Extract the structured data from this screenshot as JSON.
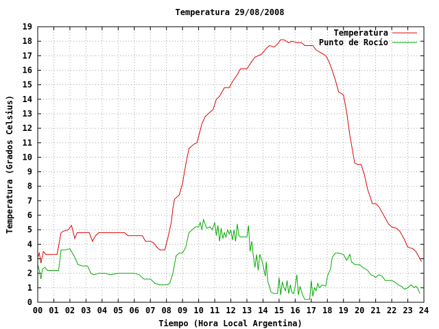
{
  "chart_data": {
    "type": "line",
    "title": "Temperatura 29/08/2008",
    "xlabel": "Tiempo (Hora Local Argentina)",
    "ylabel": "Temperatura (Grados Celsius)",
    "xlim": [
      0,
      24
    ],
    "ylim": [
      0,
      19
    ],
    "x_ticks": [
      0,
      1,
      2,
      3,
      4,
      5,
      6,
      7,
      8,
      9,
      10,
      11,
      12,
      13,
      14,
      15,
      16,
      17,
      18,
      19,
      20,
      21,
      22,
      23,
      24
    ],
    "x_tick_labels": [
      "00",
      "01",
      "02",
      "03",
      "04",
      "05",
      "06",
      "07",
      "08",
      "09",
      "10",
      "11",
      "12",
      "13",
      "14",
      "15",
      "16",
      "17",
      "18",
      "19",
      "20",
      "21",
      "22",
      "23",
      "24"
    ],
    "y_ticks": [
      0,
      1,
      2,
      3,
      4,
      5,
      6,
      7,
      8,
      9,
      10,
      11,
      12,
      13,
      14,
      15,
      16,
      17,
      18,
      19
    ],
    "grid": true,
    "legend_position": "top-right",
    "series": [
      {
        "name": "Temperatura",
        "color": "#dd0000",
        "points": [
          [
            0.0,
            3.1
          ],
          [
            0.1,
            3.4
          ],
          [
            0.2,
            2.7
          ],
          [
            0.35,
            3.5
          ],
          [
            0.5,
            3.3
          ],
          [
            0.8,
            3.3
          ],
          [
            1.2,
            3.3
          ],
          [
            1.45,
            4.8
          ],
          [
            1.6,
            4.9
          ],
          [
            1.9,
            5.0
          ],
          [
            2.1,
            5.3
          ],
          [
            2.3,
            4.4
          ],
          [
            2.45,
            4.8
          ],
          [
            2.8,
            4.8
          ],
          [
            3.2,
            4.8
          ],
          [
            3.4,
            4.2
          ],
          [
            3.6,
            4.6
          ],
          [
            3.8,
            4.8
          ],
          [
            4.2,
            4.8
          ],
          [
            4.6,
            4.8
          ],
          [
            5.0,
            4.8
          ],
          [
            5.4,
            4.8
          ],
          [
            5.6,
            4.6
          ],
          [
            6.0,
            4.6
          ],
          [
            6.5,
            4.6
          ],
          [
            6.7,
            4.2
          ],
          [
            7.0,
            4.2
          ],
          [
            7.2,
            4.1
          ],
          [
            7.4,
            3.8
          ],
          [
            7.6,
            3.6
          ],
          [
            7.9,
            3.6
          ],
          [
            8.1,
            4.5
          ],
          [
            8.3,
            5.5
          ],
          [
            8.4,
            6.5
          ],
          [
            8.5,
            7.1
          ],
          [
            8.8,
            7.4
          ],
          [
            9.0,
            8.2
          ],
          [
            9.2,
            9.5
          ],
          [
            9.4,
            10.6
          ],
          [
            9.7,
            10.9
          ],
          [
            9.9,
            11.0
          ],
          [
            10.2,
            12.3
          ],
          [
            10.4,
            12.8
          ],
          [
            10.6,
            13.0
          ],
          [
            10.9,
            13.3
          ],
          [
            11.1,
            14.0
          ],
          [
            11.3,
            14.2
          ],
          [
            11.6,
            14.8
          ],
          [
            11.9,
            14.8
          ],
          [
            12.1,
            15.2
          ],
          [
            12.4,
            15.7
          ],
          [
            12.6,
            16.1
          ],
          [
            13.0,
            16.1
          ],
          [
            13.3,
            16.6
          ],
          [
            13.5,
            16.9
          ],
          [
            13.9,
            17.1
          ],
          [
            14.2,
            17.5
          ],
          [
            14.4,
            17.7
          ],
          [
            14.7,
            17.6
          ],
          [
            14.9,
            17.8
          ],
          [
            15.1,
            18.1
          ],
          [
            15.3,
            18.1
          ],
          [
            15.6,
            17.9
          ],
          [
            15.8,
            18.0
          ],
          [
            16.1,
            17.9
          ],
          [
            16.4,
            17.9
          ],
          [
            16.6,
            17.7
          ],
          [
            16.8,
            17.7
          ],
          [
            17.1,
            17.7
          ],
          [
            17.3,
            17.4
          ],
          [
            17.6,
            17.2
          ],
          [
            17.9,
            17.0
          ],
          [
            18.1,
            16.6
          ],
          [
            18.3,
            16.0
          ],
          [
            18.5,
            15.3
          ],
          [
            18.7,
            14.5
          ],
          [
            19.0,
            14.3
          ],
          [
            19.2,
            13.1
          ],
          [
            19.4,
            11.5
          ],
          [
            19.7,
            9.6
          ],
          [
            19.9,
            9.5
          ],
          [
            20.1,
            9.5
          ],
          [
            20.3,
            8.8
          ],
          [
            20.5,
            7.8
          ],
          [
            20.8,
            6.8
          ],
          [
            21.0,
            6.8
          ],
          [
            21.2,
            6.6
          ],
          [
            21.5,
            6.0
          ],
          [
            21.8,
            5.4
          ],
          [
            22.0,
            5.2
          ],
          [
            22.3,
            5.1
          ],
          [
            22.5,
            4.9
          ],
          [
            22.8,
            4.3
          ],
          [
            23.0,
            3.8
          ],
          [
            23.3,
            3.7
          ],
          [
            23.5,
            3.5
          ],
          [
            23.7,
            3.1
          ],
          [
            23.85,
            2.8
          ]
        ]
      },
      {
        "name": "Punto de Rocío",
        "color": "#00aa00",
        "points": [
          [
            0.0,
            2.6
          ],
          [
            0.1,
            2.2
          ],
          [
            0.2,
            1.6
          ],
          [
            0.3,
            2.3
          ],
          [
            0.45,
            2.4
          ],
          [
            0.6,
            2.2
          ],
          [
            1.0,
            2.2
          ],
          [
            1.3,
            2.2
          ],
          [
            1.45,
            3.6
          ],
          [
            1.7,
            3.6
          ],
          [
            2.0,
            3.7
          ],
          [
            2.3,
            3.1
          ],
          [
            2.5,
            2.6
          ],
          [
            2.8,
            2.5
          ],
          [
            3.1,
            2.5
          ],
          [
            3.3,
            2.0
          ],
          [
            3.5,
            1.9
          ],
          [
            3.8,
            2.0
          ],
          [
            4.2,
            2.0
          ],
          [
            4.5,
            1.9
          ],
          [
            5.0,
            2.0
          ],
          [
            5.5,
            2.0
          ],
          [
            6.0,
            2.0
          ],
          [
            6.3,
            1.9
          ],
          [
            6.6,
            1.6
          ],
          [
            7.0,
            1.6
          ],
          [
            7.3,
            1.3
          ],
          [
            7.6,
            1.2
          ],
          [
            8.0,
            1.2
          ],
          [
            8.2,
            1.3
          ],
          [
            8.4,
            2.0
          ],
          [
            8.6,
            3.2
          ],
          [
            8.8,
            3.4
          ],
          [
            9.0,
            3.4
          ],
          [
            9.2,
            3.8
          ],
          [
            9.4,
            4.8
          ],
          [
            9.6,
            5.0
          ],
          [
            9.8,
            5.2
          ],
          [
            10.0,
            5.2
          ],
          [
            10.1,
            5.5
          ],
          [
            10.2,
            5.0
          ],
          [
            10.3,
            5.7
          ],
          [
            10.5,
            5.1
          ],
          [
            10.7,
            5.2
          ],
          [
            10.85,
            5.0
          ],
          [
            11.0,
            5.5
          ],
          [
            11.1,
            4.6
          ],
          [
            11.2,
            5.3
          ],
          [
            11.3,
            4.2
          ],
          [
            11.4,
            5.1
          ],
          [
            11.5,
            4.4
          ],
          [
            11.6,
            4.8
          ],
          [
            11.7,
            4.5
          ],
          [
            11.8,
            5.0
          ],
          [
            11.9,
            4.7
          ],
          [
            12.0,
            5.0
          ],
          [
            12.1,
            4.3
          ],
          [
            12.2,
            5.0
          ],
          [
            12.3,
            4.2
          ],
          [
            12.4,
            5.4
          ],
          [
            12.5,
            4.6
          ],
          [
            12.6,
            4.5
          ],
          [
            12.8,
            4.5
          ],
          [
            13.0,
            4.5
          ],
          [
            13.1,
            5.3
          ],
          [
            13.2,
            3.5
          ],
          [
            13.3,
            4.2
          ],
          [
            13.4,
            3.2
          ],
          [
            13.5,
            2.4
          ],
          [
            13.6,
            3.3
          ],
          [
            13.7,
            2.2
          ],
          [
            13.8,
            3.3
          ],
          [
            13.9,
            3.0
          ],
          [
            14.0,
            2.6
          ],
          [
            14.1,
            2.0
          ],
          [
            14.15,
            1.8
          ],
          [
            14.2,
            2.8
          ],
          [
            14.3,
            1.4
          ],
          [
            14.4,
            1.1
          ],
          [
            14.5,
            0.7
          ],
          [
            14.7,
            0.6
          ],
          [
            14.9,
            0.6
          ],
          [
            15.0,
            1.7
          ],
          [
            15.1,
            0.5
          ],
          [
            15.2,
            1.4
          ],
          [
            15.3,
            1.0
          ],
          [
            15.4,
            0.8
          ],
          [
            15.5,
            1.5
          ],
          [
            15.6,
            0.6
          ],
          [
            15.7,
            1.2
          ],
          [
            15.8,
            0.7
          ],
          [
            15.9,
            0.6
          ],
          [
            16.0,
            1.1
          ],
          [
            16.1,
            1.9
          ],
          [
            16.2,
            0.5
          ],
          [
            16.3,
            1.1
          ],
          [
            16.4,
            0.7
          ],
          [
            16.5,
            0.4
          ],
          [
            16.6,
            0.2
          ],
          [
            16.8,
            0.2
          ],
          [
            16.9,
            0.2
          ],
          [
            17.0,
            1.5
          ],
          [
            17.1,
            0.4
          ],
          [
            17.2,
            1.0
          ],
          [
            17.3,
            0.8
          ],
          [
            17.4,
            1.3
          ],
          [
            17.5,
            1.0
          ],
          [
            17.7,
            1.2
          ],
          [
            17.9,
            1.1
          ],
          [
            18.0,
            1.8
          ],
          [
            18.2,
            2.3
          ],
          [
            18.3,
            3.1
          ],
          [
            18.5,
            3.4
          ],
          [
            18.7,
            3.4
          ],
          [
            19.0,
            3.3
          ],
          [
            19.2,
            2.9
          ],
          [
            19.4,
            3.3
          ],
          [
            19.5,
            2.8
          ],
          [
            19.7,
            2.6
          ],
          [
            20.0,
            2.6
          ],
          [
            20.2,
            2.4
          ],
          [
            20.5,
            2.2
          ],
          [
            20.7,
            1.9
          ],
          [
            20.9,
            1.8
          ],
          [
            21.0,
            1.7
          ],
          [
            21.2,
            1.9
          ],
          [
            21.4,
            1.8
          ],
          [
            21.6,
            1.5
          ],
          [
            21.8,
            1.5
          ],
          [
            22.0,
            1.5
          ],
          [
            22.2,
            1.4
          ],
          [
            22.4,
            1.2
          ],
          [
            22.6,
            1.1
          ],
          [
            22.8,
            0.9
          ],
          [
            23.0,
            1.0
          ],
          [
            23.2,
            1.2
          ],
          [
            23.4,
            1.0
          ],
          [
            23.5,
            1.1
          ],
          [
            23.6,
            1.0
          ],
          [
            23.75,
            0.6
          ]
        ]
      }
    ]
  }
}
